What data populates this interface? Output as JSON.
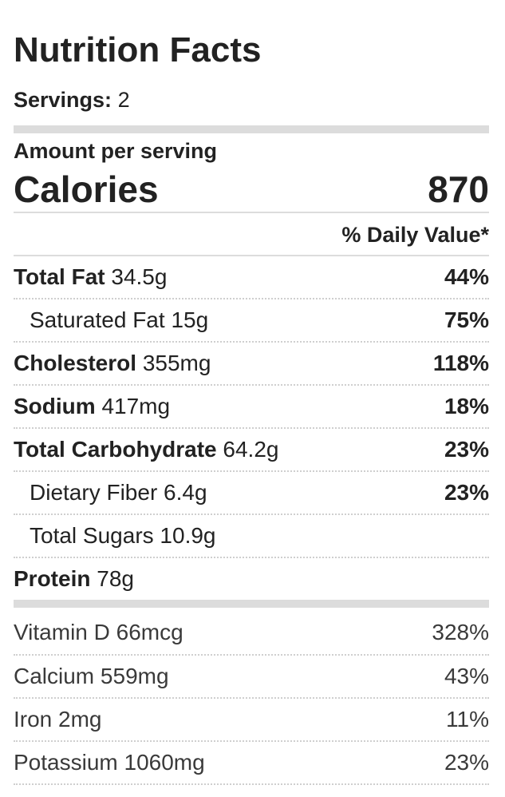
{
  "title": "Nutrition Facts",
  "servings": {
    "label": "Servings:",
    "value": "2"
  },
  "amount_per_serving": "Amount per serving",
  "calories": {
    "label": "Calories",
    "value": "870"
  },
  "daily_value_header": "% Daily Value*",
  "nutrients": [
    {
      "name": "Total Fat",
      "amount": "34.5g",
      "dv": "44%"
    },
    {
      "name": "Saturated Fat",
      "amount": "15g",
      "dv": "75%"
    },
    {
      "name": "Cholesterol",
      "amount": "355mg",
      "dv": "118%"
    },
    {
      "name": "Sodium",
      "amount": "417mg",
      "dv": "18%"
    },
    {
      "name": "Total Carbohydrate",
      "amount": "64.2g",
      "dv": "23%"
    },
    {
      "name": "Dietary Fiber",
      "amount": "6.4g",
      "dv": "23%"
    },
    {
      "name": "Total Sugars",
      "amount": "10.9g",
      "dv": ""
    },
    {
      "name": "Protein",
      "amount": "78g",
      "dv": ""
    }
  ],
  "vitamins": [
    {
      "name": "Vitamin D",
      "amount": "66mcg",
      "dv": "328%"
    },
    {
      "name": "Calcium",
      "amount": "559mg",
      "dv": "43%"
    },
    {
      "name": "Iron",
      "amount": "2mg",
      "dv": "11%"
    },
    {
      "name": "Potassium",
      "amount": "1060mg",
      "dv": "23%"
    }
  ]
}
